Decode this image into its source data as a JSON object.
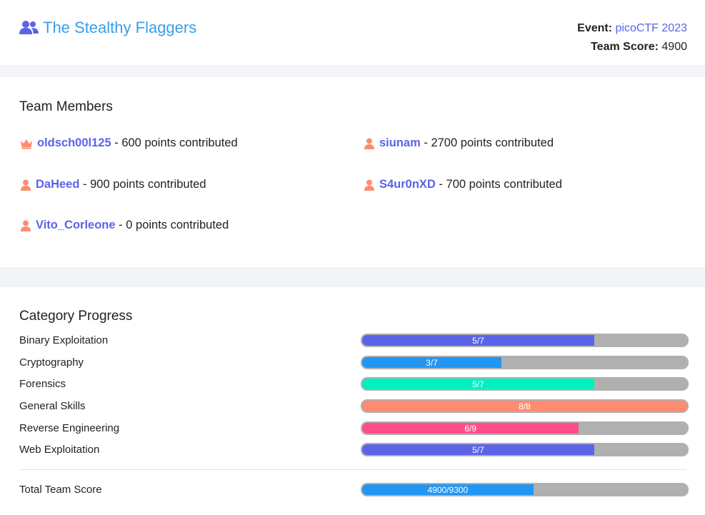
{
  "team": {
    "name": "The Stealthy Flaggers",
    "event_label": "Event:",
    "event_name": "picoCTF 2023",
    "score_label": "Team Score:",
    "score_value": "4900"
  },
  "members_section": {
    "title": "Team Members",
    "suffix": "points contributed",
    "members": [
      {
        "name": "oldsch00l125",
        "points": "600",
        "role": "captain"
      },
      {
        "name": "siunam",
        "points": "2700",
        "role": "member"
      },
      {
        "name": "DaHeed",
        "points": "900",
        "role": "member"
      },
      {
        "name": "S4ur0nXD",
        "points": "700",
        "role": "member"
      },
      {
        "name": "Vito_Corleone",
        "points": "0",
        "role": "member"
      }
    ]
  },
  "progress_section": {
    "title": "Category Progress",
    "categories": [
      {
        "label": "Binary Exploitation",
        "text": "5/7",
        "value": 5,
        "max": 7,
        "color": "#5b63e8"
      },
      {
        "label": "Cryptography",
        "text": "3/7",
        "value": 3,
        "max": 7,
        "color": "#2196f3"
      },
      {
        "label": "Forensics",
        "text": "5/7",
        "value": 5,
        "max": 7,
        "color": "#00f0c0"
      },
      {
        "label": "General Skills",
        "text": "8/8",
        "value": 8,
        "max": 8,
        "color": "#ff8c70"
      },
      {
        "label": "Reverse Engineering",
        "text": "6/9",
        "value": 6,
        "max": 9,
        "color": "#ff4f8b"
      },
      {
        "label": "Web Exploitation",
        "text": "5/7",
        "value": 5,
        "max": 7,
        "color": "#5b63e8"
      }
    ],
    "total": {
      "label": "Total Team Score",
      "text": "4900/9300",
      "value": 4900,
      "max": 9300,
      "color": "#2196f3"
    }
  },
  "colors": {
    "accent": "#5b63e8",
    "title_blue": "#3a9ee6",
    "member_icon": "#ff8c70"
  }
}
